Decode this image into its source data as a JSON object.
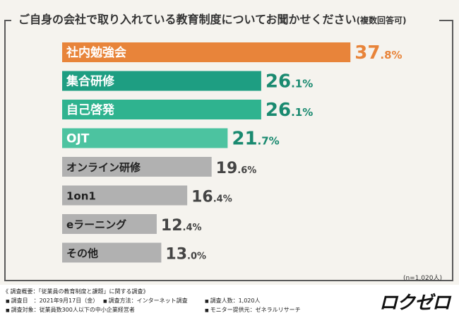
{
  "title": "ご自身の会社で取り入れている教育制度についてお聞かせください",
  "subtitle": "(複数回答可)",
  "n_note": "(n=1,020人)",
  "colors": {
    "top": "#e8843a",
    "green_dark": "#1e9e82",
    "green_mid": "#2fb38f",
    "green_light": "#4cc3a0",
    "gray": "#b1b1b1",
    "value_top": "#e8843a",
    "value_green": "#1a8a70",
    "value_gray": "#444444"
  },
  "chart_data": {
    "type": "bar",
    "orientation": "horizontal",
    "categories": [
      "社内勉強会",
      "集合研修",
      "自己啓発",
      "OJT",
      "オンライン研修",
      "1on1",
      "eラーニング",
      "その他"
    ],
    "values": [
      37.8,
      26.1,
      26.1,
      21.7,
      19.6,
      16.4,
      12.4,
      13.0
    ],
    "value_labels": [
      "37.8%",
      "26.1%",
      "26.1%",
      "21.7%",
      "19.6%",
      "16.4%",
      "12.4%",
      "13.0%"
    ],
    "color_keys": [
      "top",
      "green_dark",
      "green_mid",
      "green_light",
      "gray",
      "gray",
      "gray",
      "gray"
    ],
    "unit": "%",
    "xlim": [
      0,
      40
    ],
    "grid": false,
    "legend": "none"
  },
  "footer": {
    "heading": "《 調査概要：「従業員の教育制度と課題」に関する調査》",
    "date": "調査日　：2021年9月17日（金）",
    "method": "調査方法：インターネット調査",
    "count": "調査人数：1,020人",
    "target": "調査対象：従業員数300人以下の中小企業経営者",
    "provider": "モニター提供元：ゼネラルリサーチ"
  },
  "logo": "ロクゼロ"
}
